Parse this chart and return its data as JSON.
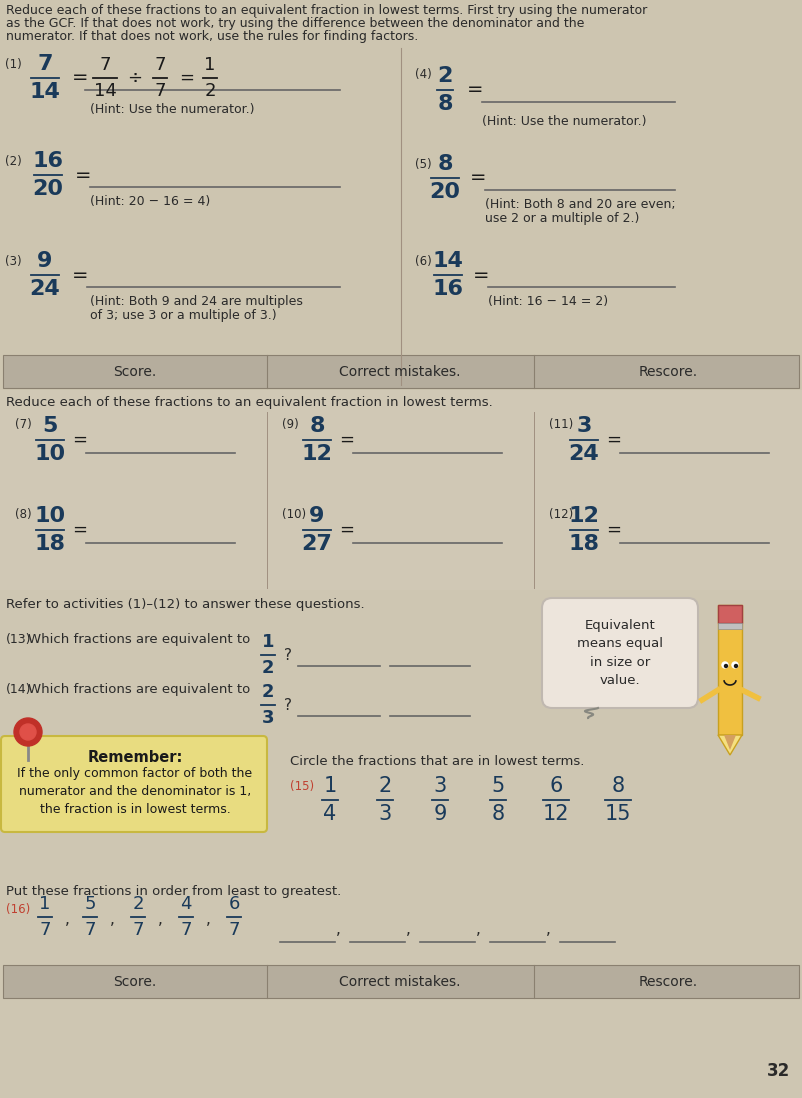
{
  "bg_color": "#d4ccba",
  "title_text_line1": "Reduce each of these fractions to an equivalent fraction in lowest terms. First try using the numerator",
  "title_text_line2": "as the GCF. If that does not work, try using the difference between the denominator and the",
  "title_text_line3": "numerator. If that does not work, use the rules for finding factors.",
  "text_color": "#2a2a2a",
  "dark_text": "#1a1a1a",
  "frac_color": "#1a3a5a",
  "hint_color": "#2a2a2a",
  "score_bar_color": "#b8b0a0",
  "score_texts": [
    "Score.",
    "Correct mistakes.",
    "Rescore."
  ],
  "section2_title": "Reduce each of these fractions to an equivalent fraction in lowest terms.",
  "refer_text": "Refer to activities (1)–(12) to answer these questions.",
  "q13_label": "(13)",
  "q13_text": "Which fractions are equivalent to",
  "q13_frac": "1/2",
  "q14_label": "(14)",
  "q14_text": "Which fractions are equivalent to",
  "q14_frac": "2/3",
  "remember_title": "Remember:",
  "remember_text": "If the only common factor of both the\nnumerator and the denominator is 1,\nthe fraction is in lowest terms.",
  "circle_text": "Circle the fractions that are in lowest terms.",
  "q15_label": "(15)",
  "q15_fracs": [
    "1/4",
    "2/3",
    "3/9",
    "5/8",
    "6/12",
    "8/15"
  ],
  "order_text": "Put these fractions in order from least to greatest.",
  "q16_label": "(16)",
  "q16_fracs": [
    "1/7",
    "5/7",
    "2/7",
    "4/7",
    "6/7"
  ],
  "equiv_text": "Equivalent\nmeans equal\nin size or\nvalue.",
  "page_num": "32",
  "worked1": "= ⁄ ÷ ⁄ = ⁄",
  "section_divider_color": "#a09080",
  "answer_line_color": "#666666"
}
